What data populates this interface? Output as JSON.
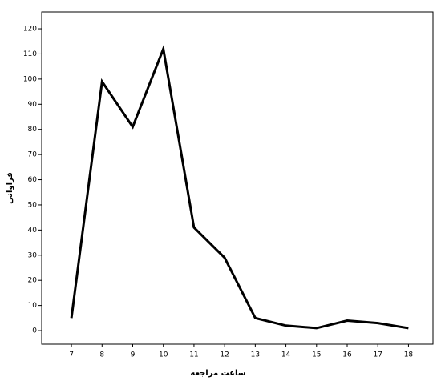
{
  "chart_data": {
    "type": "line",
    "x_label": "ساعت مراجعه",
    "y_label": "فراوانی",
    "x": [
      7,
      8,
      9,
      10,
      11,
      12,
      13,
      14,
      15,
      16,
      17,
      18
    ],
    "series": [
      {
        "color": "#000000",
        "values": [
          5,
          99,
          81,
          112,
          41,
          29,
          5,
          2,
          1,
          4,
          3,
          1
        ]
      }
    ],
    "xlim": [
      6.03,
      18.8
    ],
    "ylim": [
      -5.4,
      126.7
    ],
    "xticks": [
      7,
      8,
      9,
      10,
      11,
      12,
      13,
      14,
      15,
      16,
      17,
      18
    ],
    "yticks": [
      0,
      10,
      20,
      30,
      40,
      50,
      60,
      70,
      80,
      90,
      100,
      110,
      120
    ]
  }
}
